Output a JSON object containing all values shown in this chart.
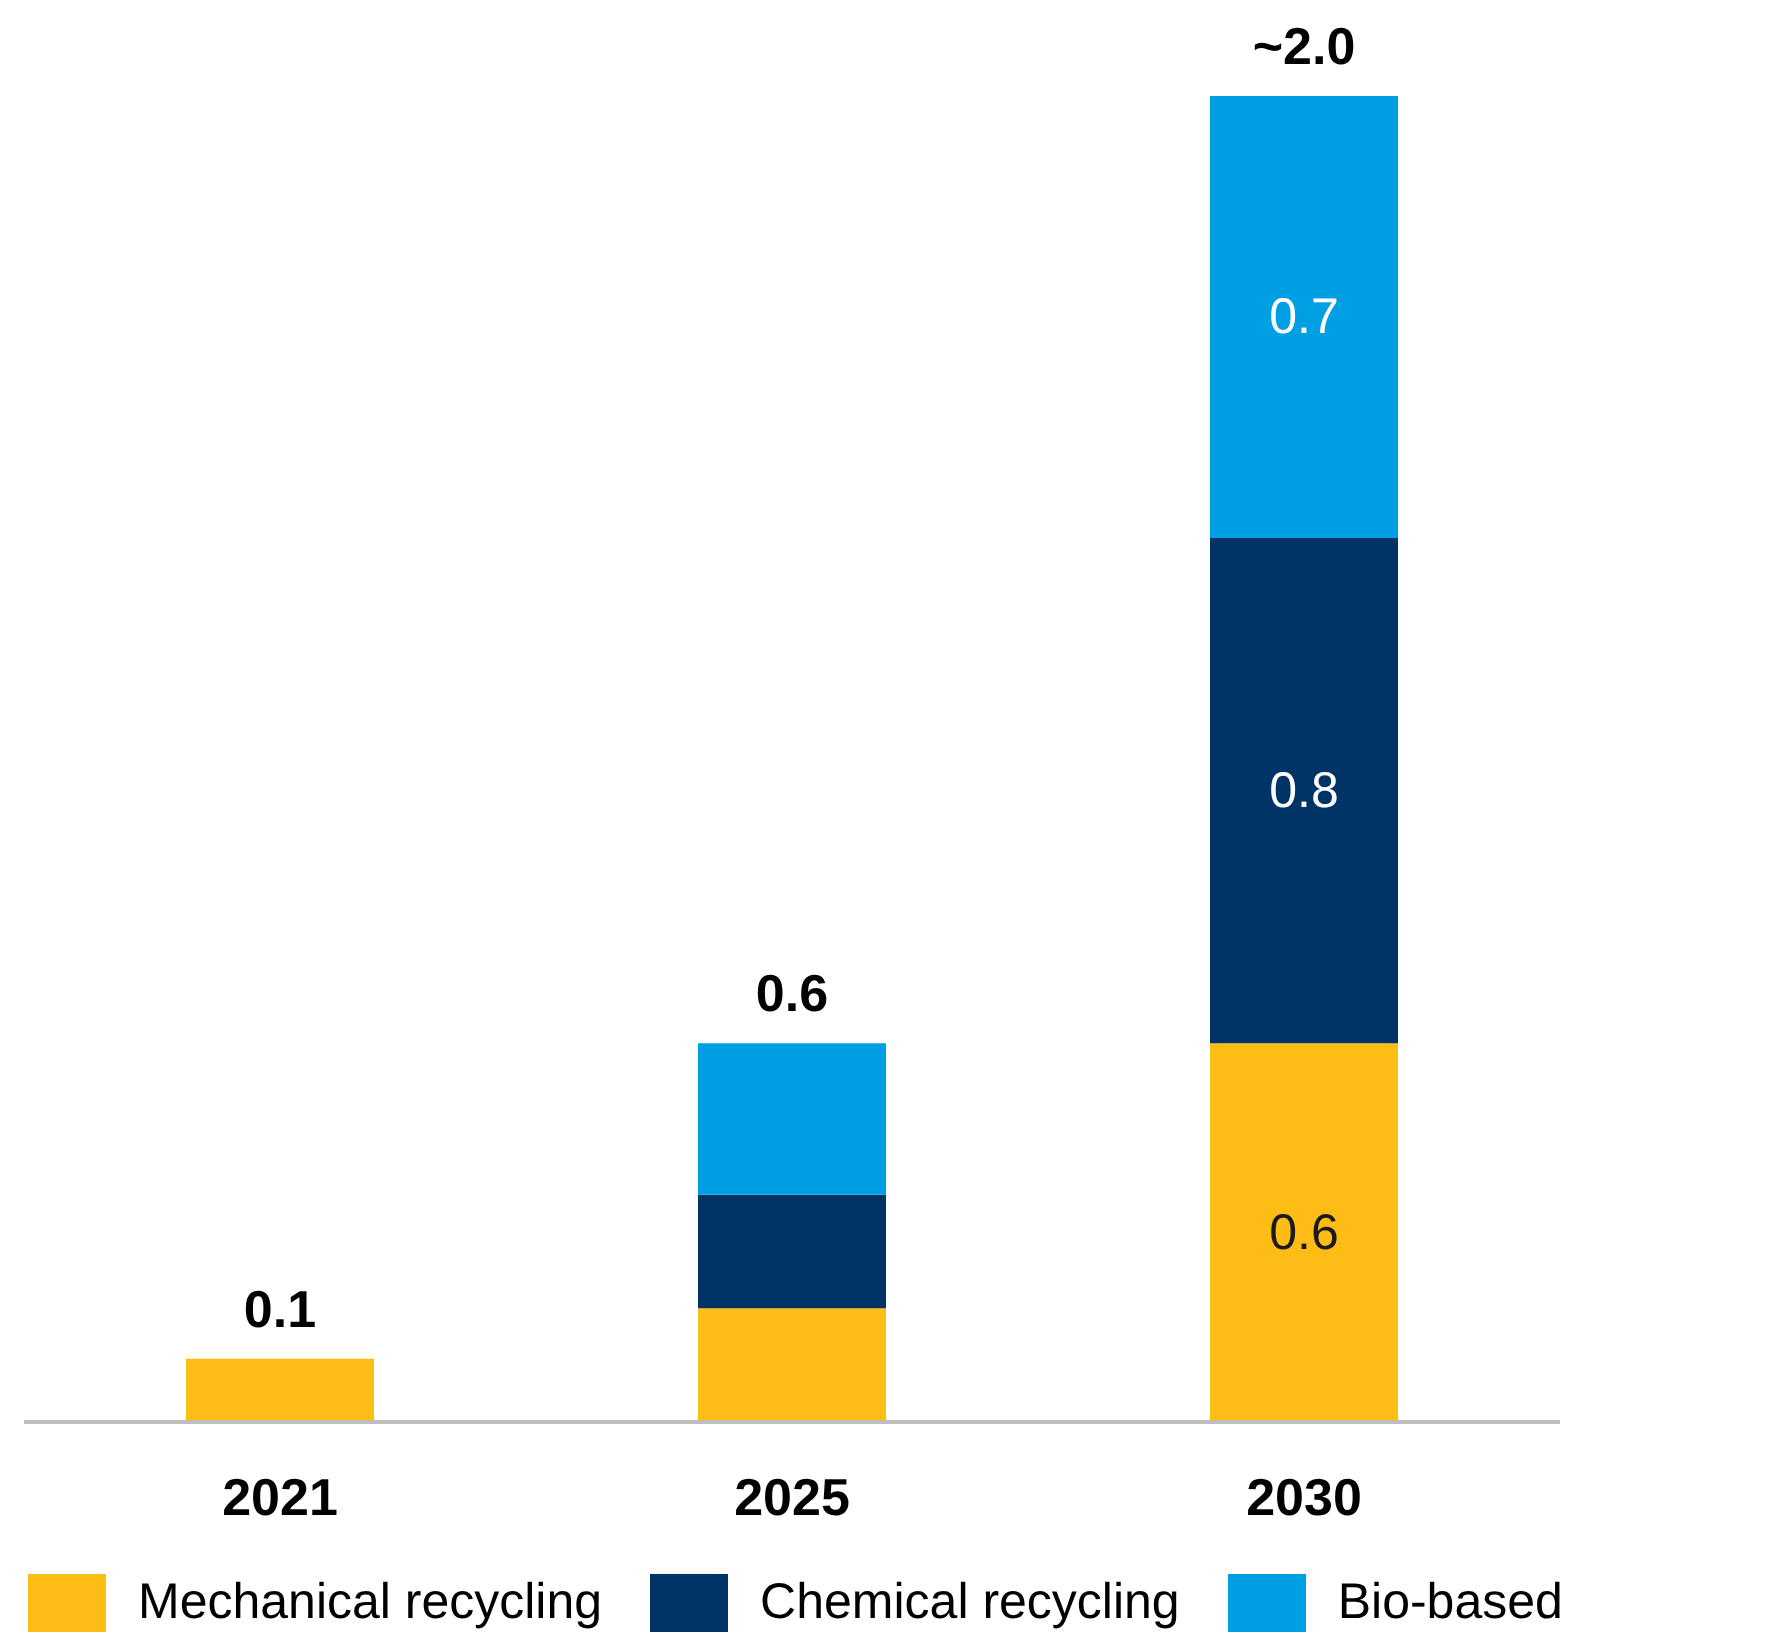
{
  "chart_data": {
    "type": "bar",
    "stacked": true,
    "categories": [
      "2021",
      "2025",
      "2030"
    ],
    "series": [
      {
        "name": "Mechanical recycling",
        "color": "#fdbd14",
        "values": [
          0.1,
          0.18,
          0.6
        ],
        "value_labels": [
          null,
          null,
          "0.6"
        ]
      },
      {
        "name": "Chemical recycling",
        "color": "#003366",
        "values": [
          null,
          0.18,
          0.8
        ],
        "value_labels": [
          null,
          null,
          "0.8"
        ]
      },
      {
        "name": "Bio-based",
        "color": "#009fe3",
        "values": [
          null,
          0.24,
          0.7
        ],
        "value_labels": [
          null,
          null,
          "0.7"
        ]
      }
    ],
    "totals": [
      "0.1",
      "0.6",
      "~2.0"
    ],
    "tick_labels": "x",
    "legend": "bottom"
  }
}
